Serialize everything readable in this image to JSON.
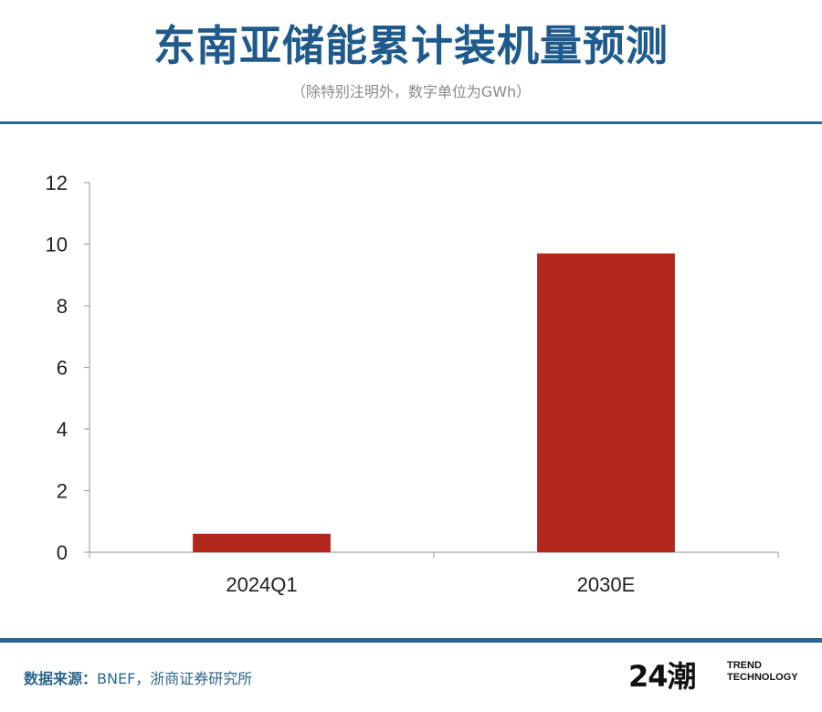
{
  "header": {
    "title": "东南亚储能累计装机量预测",
    "subtitle": "（除特别注明外，数字单位为GWh）"
  },
  "chart_data": {
    "type": "bar",
    "categories": [
      "2024Q1",
      "2030E"
    ],
    "values": [
      0.6,
      9.7
    ],
    "ylim": [
      0,
      12
    ],
    "yticks": [
      0,
      2,
      4,
      6,
      8,
      10,
      12
    ],
    "bar_color": "#b2271c",
    "grid": false,
    "legend": "none"
  },
  "footer": {
    "source_label": "数据来源：",
    "source_text": "BNEF，浙商证券研究所",
    "logo": {
      "mark": "24潮",
      "line1": "TREND",
      "line2": "TECHNOLOGY"
    }
  },
  "colors": {
    "title": "#1f5a8c",
    "rule": "#2b6690",
    "bar": "#b2271c",
    "axis": "#a6a6a6"
  }
}
